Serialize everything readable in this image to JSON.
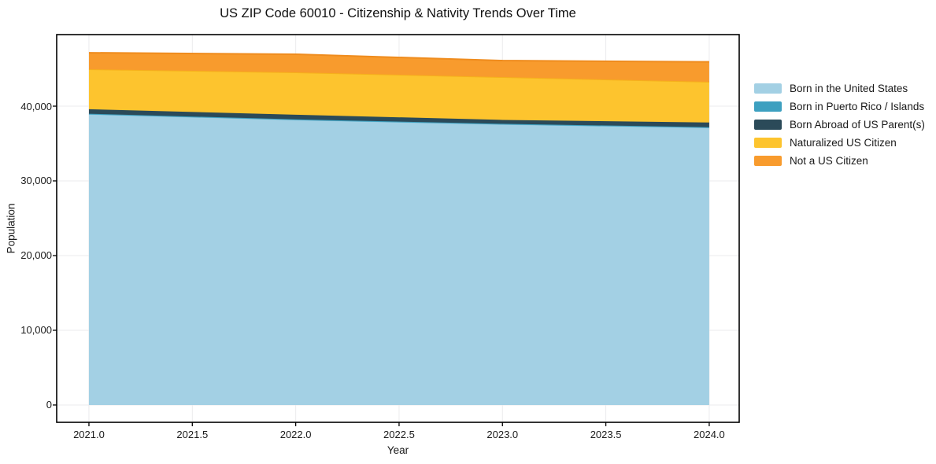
{
  "figure": {
    "background": "#ffffff",
    "border_color": "#000000",
    "grid_color": "#ebebed"
  },
  "chart_data": {
    "type": "area",
    "stacked": true,
    "title": "US ZIP Code 60010 - Citizenship & Nativity Trends Over Time",
    "xlabel": "Year",
    "ylabel": "Population",
    "x": [
      2021,
      2022,
      2023,
      2024
    ],
    "series": [
      {
        "name": "Born in the United States",
        "color": "#a3d0e4",
        "stroke": "#8cc3da",
        "values": [
          38950,
          38200,
          37600,
          37150
        ]
      },
      {
        "name": "Born in Puerto Rico / Islands",
        "color": "#3da0c0",
        "stroke": "#3da0c0",
        "values": [
          40,
          40,
          40,
          40
        ]
      },
      {
        "name": "Born Abroad of US Parent(s)",
        "color": "#2b4a59",
        "stroke": "#2b4a59",
        "values": [
          600,
          620,
          520,
          620
        ]
      },
      {
        "name": "Naturalized US Citizen",
        "color": "#fdc42e",
        "stroke": "#f6b01b",
        "values": [
          5360,
          5670,
          5730,
          5450
        ]
      },
      {
        "name": "Not a US Citizen",
        "color": "#f89b2d",
        "stroke": "#ef8c1e",
        "values": [
          2200,
          2420,
          2210,
          2670
        ]
      }
    ],
    "x_ticks": {
      "values": [
        2021.0,
        2021.5,
        2022.0,
        2022.5,
        2023.0,
        2023.5,
        2024.0
      ],
      "labels": [
        "2021.0",
        "2021.5",
        "2022.0",
        "2022.5",
        "2023.0",
        "2023.5",
        "2024.0"
      ]
    },
    "y_ticks": {
      "values": [
        0,
        10000,
        20000,
        30000,
        40000
      ],
      "labels": [
        "0",
        "10,000",
        "20,000",
        "30,000",
        "40,000"
      ]
    },
    "xlim": [
      2020.844,
      2024.145
    ],
    "ylim": [
      -2320,
      49580
    ],
    "grid": true,
    "legend_position": "right"
  }
}
